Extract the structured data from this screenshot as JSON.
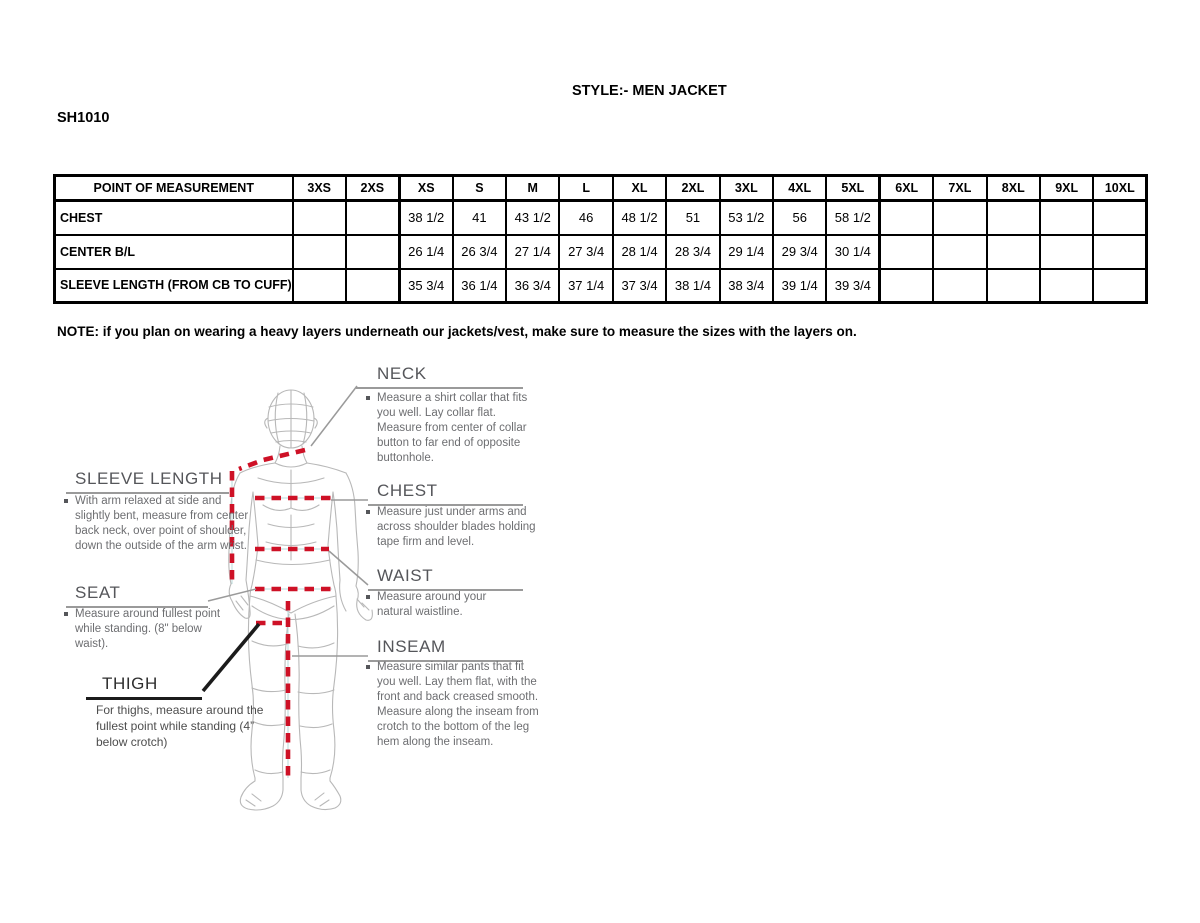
{
  "header": {
    "style_title": "STYLE:- MEN JACKET",
    "style_code": "SH1010"
  },
  "note": "NOTE: if you plan on wearing a heavy layers underneath our jackets/vest, make sure to measure the sizes with the layers on.",
  "table": {
    "headers": [
      "POINT OF MEASUREMENT",
      "3XS",
      "2XS",
      "XS",
      "S",
      "M",
      "L",
      "XL",
      "2XL",
      "3XL",
      "4XL",
      "5XL",
      "6XL",
      "7XL",
      "8XL",
      "9XL",
      "10XL"
    ],
    "rows": [
      {
        "label": "CHEST",
        "values": [
          "",
          "",
          "38 1/2",
          "41",
          "43 1/2",
          "46",
          "48 1/2",
          "51",
          "53 1/2",
          "56",
          "58 1/2",
          "",
          "",
          "",
          "",
          ""
        ]
      },
      {
        "label": "CENTER B/L",
        "values": [
          "",
          "",
          "26 1/4",
          "26 3/4",
          "27 1/4",
          "27 3/4",
          "28 1/4",
          "28 3/4",
          "29 1/4",
          "29 3/4",
          "30 1/4",
          "",
          "",
          "",
          "",
          ""
        ]
      },
      {
        "label": "SLEEVE LENGTH (FROM CB TO CUFF)",
        "values": [
          "",
          "",
          "35 3/4",
          "36 1/4",
          "36 3/4",
          "37 1/4",
          "37 3/4",
          "38 1/4",
          "38 3/4",
          "39 1/4",
          "39 3/4",
          "",
          "",
          "",
          "",
          ""
        ]
      }
    ]
  },
  "diagram": {
    "colors": {
      "measure_red": "#ce1126",
      "wire_gray": "#b8b8b8",
      "heading_gray": "#55565a",
      "text_gray": "#6d6e71"
    },
    "neck": {
      "title": "NECK",
      "desc": "Measure a shirt collar that fits you well. Lay collar flat. Measure from center of collar button to far end of opposite buttonhole."
    },
    "chest": {
      "title": "CHEST",
      "desc": "Measure just under arms and across shoulder blades holding tape firm and level."
    },
    "waist": {
      "title": "WAIST",
      "desc": "Measure around your natural waistline."
    },
    "inseam": {
      "title": "INSEAM",
      "desc": "Measure similar pants that fit you well. Lay them flat, with the front and back creased smooth. Measure along the inseam from crotch to the bottom of the leg hem along the inseam."
    },
    "sleeve_length": {
      "title": "SLEEVE LENGTH",
      "desc": "With arm relaxed at side and slightly bent, measure from center back neck, over point of shoulder, down the outside of the arm wrist."
    },
    "seat": {
      "title": "SEAT",
      "desc": "Measure around fullest point while standing. (8\" below waist)."
    },
    "thigh": {
      "title": "THIGH",
      "desc": "For thighs, measure around the fullest point while standing (4” below crotch)"
    }
  }
}
